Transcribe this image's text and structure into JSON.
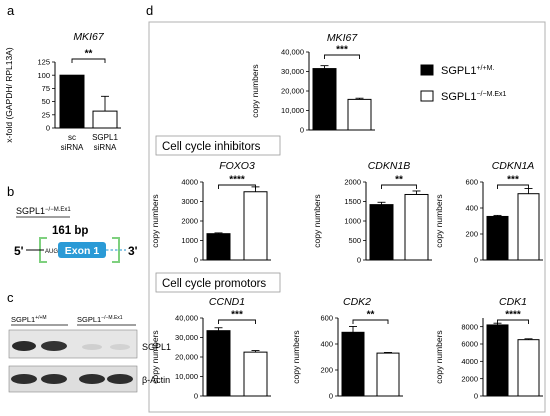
{
  "panels": {
    "a": {
      "label": "a"
    },
    "b": {
      "label": "b",
      "genotype_base": "SGPL1",
      "genotype_sup": "−/−M.Ex1",
      "bp_label": "161 bp",
      "exon_label": "Exon 1",
      "aug_label": "AUG",
      "five_prime": "5'",
      "three_prime": "3'"
    },
    "c": {
      "label": "c",
      "lane_group_1_base": "SGPL1",
      "lane_group_1_sup": "+/+M",
      "lane_group_2_base": "SGPL1",
      "lane_group_2_sup": "−/−M.Ex1",
      "band_1_label": "SGPL1",
      "band_2_label": "β-Actin"
    },
    "d": {
      "label": "d",
      "inhibitors_label": "Cell cycle inhibitors",
      "promotors_label": "Cell cycle promotors"
    }
  },
  "legend": {
    "items": [
      {
        "base": "SGPL1",
        "sup": "+/+M.",
        "color": "#000000"
      },
      {
        "base": "SGPL1",
        "sup": "−/−M.Ex1",
        "color": "#ffffff"
      }
    ]
  },
  "chart_data": [
    {
      "id": "a",
      "type": "bar",
      "title": "MKI67",
      "ylabel": "x-fold (GAPDH/ RPL13A)",
      "categories": [
        "sc siRNA",
        "SGPL1 siRNA"
      ],
      "values": [
        100,
        32
      ],
      "errors": [
        0,
        28
      ],
      "colors": [
        "#000000",
        "#ffffff"
      ],
      "ylim": [
        0,
        125
      ],
      "yticks": [
        0,
        25,
        50,
        75,
        100,
        125
      ],
      "ytick_labels": [
        "0",
        "25",
        "50",
        "75",
        "100",
        "125"
      ],
      "significance": "**"
    },
    {
      "id": "d-mki67",
      "type": "bar",
      "title": "MKI67",
      "ylabel": "copy numbers",
      "categories": [
        "SGPL1+/+M.",
        "SGPL1−/−M.Ex1"
      ],
      "values": [
        31500,
        15700
      ],
      "errors": [
        1500,
        600
      ],
      "ylim": [
        0,
        40000
      ],
      "yticks": [
        0,
        10000,
        20000,
        30000,
        40000
      ],
      "ytick_labels": [
        "0",
        "10,000",
        "20,000",
        "30,000",
        "40,000"
      ],
      "significance": "***"
    },
    {
      "id": "d-foxo3",
      "type": "bar",
      "title": "FOXO3",
      "ylabel": "copy numbers",
      "categories": [
        "SGPL1+/+M.",
        "SGPL1−/−M.Ex1"
      ],
      "values": [
        1350,
        3500
      ],
      "errors": [
        40,
        250
      ],
      "ylim": [
        0,
        4000
      ],
      "yticks": [
        0,
        1000,
        2000,
        3000,
        4000
      ],
      "ytick_labels": [
        "0",
        "1000",
        "2000",
        "3000",
        "4000"
      ],
      "significance": "****"
    },
    {
      "id": "d-cdkn1b",
      "type": "bar",
      "title": "CDKN1B",
      "ylabel": "copy numbers",
      "categories": [
        "SGPL1+/+M.",
        "SGPL1−/−M.Ex1"
      ],
      "values": [
        1420,
        1680
      ],
      "errors": [
        60,
        90
      ],
      "ylim": [
        0,
        2000
      ],
      "yticks": [
        0,
        500,
        1000,
        1500,
        2000
      ],
      "ytick_labels": [
        "0",
        "500",
        "1000",
        "1500",
        "2000"
      ],
      "significance": "**"
    },
    {
      "id": "d-cdkn1a",
      "type": "bar",
      "title": "CDKN1A",
      "ylabel": "copy numbers",
      "categories": [
        "SGPL1+/+M.",
        "SGPL1−/−M.Ex1"
      ],
      "values": [
        335,
        510
      ],
      "errors": [
        8,
        40
      ],
      "ylim": [
        0,
        600
      ],
      "yticks": [
        0,
        200,
        400,
        600
      ],
      "ytick_labels": [
        "0",
        "200",
        "400",
        "600"
      ],
      "significance": "***"
    },
    {
      "id": "d-ccnd1",
      "type": "bar",
      "title": "CCND1",
      "ylabel": "copy numbers",
      "categories": [
        "SGPL1+/+M.",
        "SGPL1−/−M.Ex1"
      ],
      "values": [
        33500,
        22500
      ],
      "errors": [
        1500,
        800
      ],
      "ylim": [
        0,
        40000
      ],
      "yticks": [
        0,
        10000,
        20000,
        30000,
        40000
      ],
      "ytick_labels": [
        "0",
        "10,000",
        "20,000",
        "30,000",
        "40,000"
      ],
      "significance": "***"
    },
    {
      "id": "d-cdk2",
      "type": "bar",
      "title": "CDK2",
      "ylabel": "copy numbers",
      "categories": [
        "SGPL1+/+M.",
        "SGPL1−/−M.Ex1"
      ],
      "values": [
        490,
        330
      ],
      "errors": [
        45,
        5
      ],
      "ylim": [
        0,
        600
      ],
      "yticks": [
        0,
        200,
        400,
        600
      ],
      "ytick_labels": [
        "0",
        "200",
        "400",
        "600"
      ],
      "significance": "**"
    },
    {
      "id": "d-cdk1",
      "type": "bar",
      "title": "CDK1",
      "ylabel": "copy numbers",
      "categories": [
        "SGPL1+/+M.",
        "SGPL1−/−M.Ex1"
      ],
      "values": [
        8200,
        6500
      ],
      "errors": [
        200,
        100
      ],
      "ylim": [
        0,
        9000
      ],
      "yticks": [
        0,
        2000,
        4000,
        6000,
        8000
      ],
      "ytick_labels": [
        "0",
        "2000",
        "4000",
        "6000",
        "8000"
      ],
      "significance": "****"
    }
  ]
}
